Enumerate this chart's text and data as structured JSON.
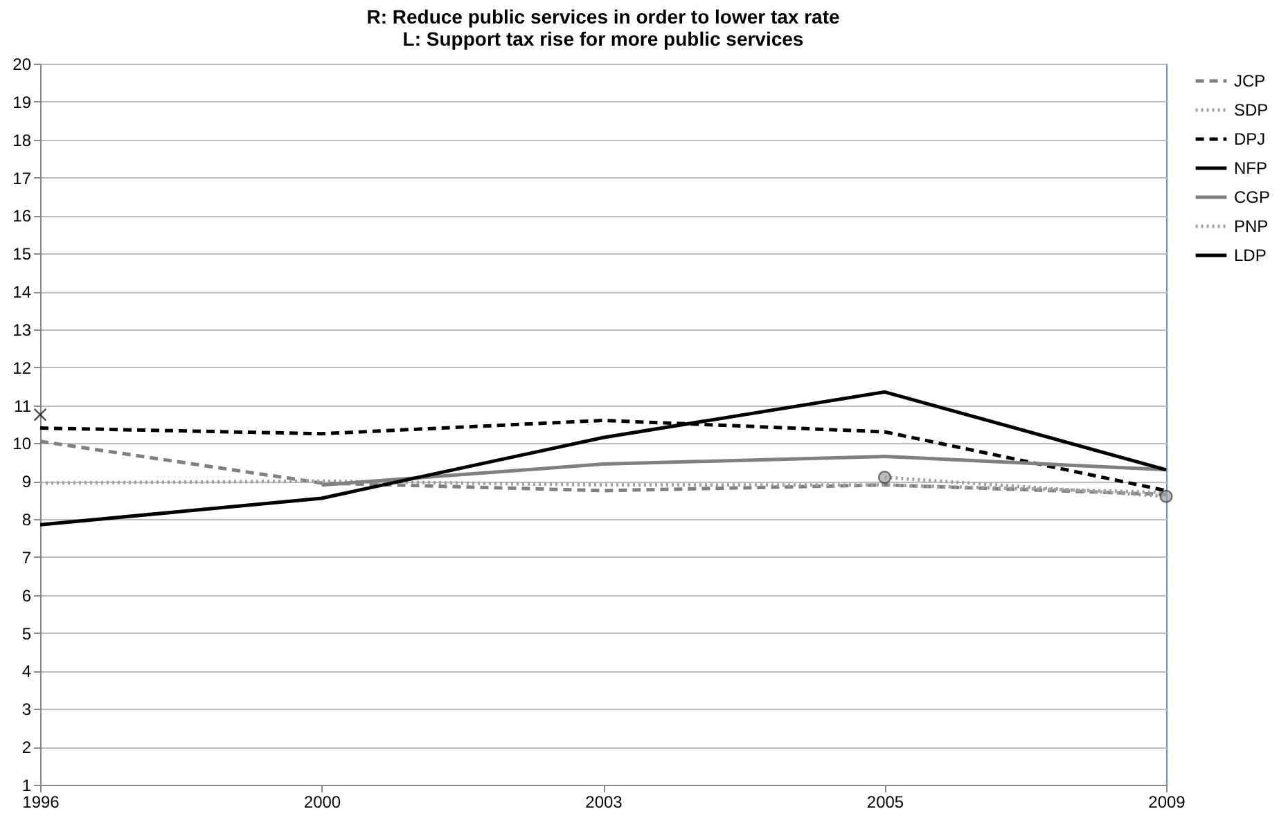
{
  "chart_data": {
    "type": "line",
    "title": "R: Reduce public services in order to lower tax rate\nL: Support tax rise for more public services",
    "categories": [
      "1996",
      "2000",
      "2003",
      "2005",
      "2009"
    ],
    "series": [
      {
        "name": "JCP",
        "color": "#808080",
        "line_style": "dashed",
        "values": [
          10.05,
          8.95,
          8.75,
          8.9,
          8.65
        ]
      },
      {
        "name": "SDP",
        "color": "#a0a0a0",
        "line_style": "dotted",
        "values": [
          8.95,
          9.0,
          8.9,
          8.9,
          8.7
        ]
      },
      {
        "name": "DPJ",
        "color": "#000000",
        "line_style": "dashed",
        "values": [
          10.4,
          10.25,
          10.6,
          10.3,
          8.75
        ]
      },
      {
        "name": "NFP",
        "color": "#000000",
        "line_style": "solid",
        "marker": "cross",
        "values": [
          10.75,
          null,
          null,
          null,
          null
        ]
      },
      {
        "name": "CGP",
        "color": "#808080",
        "line_style": "solid",
        "values": [
          null,
          8.9,
          9.45,
          9.65,
          9.3
        ]
      },
      {
        "name": "PNP",
        "color": "#a0a0a0",
        "line_style": "dotted",
        "marker": "circle",
        "values": [
          null,
          null,
          null,
          9.1,
          8.6
        ]
      },
      {
        "name": "LDP",
        "color": "#000000",
        "line_style": "solid",
        "values": [
          7.85,
          8.55,
          10.15,
          11.35,
          9.3
        ]
      }
    ],
    "ylim": [
      1,
      20
    ],
    "yticks": [
      1,
      2,
      3,
      4,
      5,
      6,
      7,
      8,
      9,
      10,
      11,
      12,
      13,
      14,
      15,
      16,
      17,
      18,
      19,
      20
    ],
    "grid": "y",
    "legend": "right"
  }
}
